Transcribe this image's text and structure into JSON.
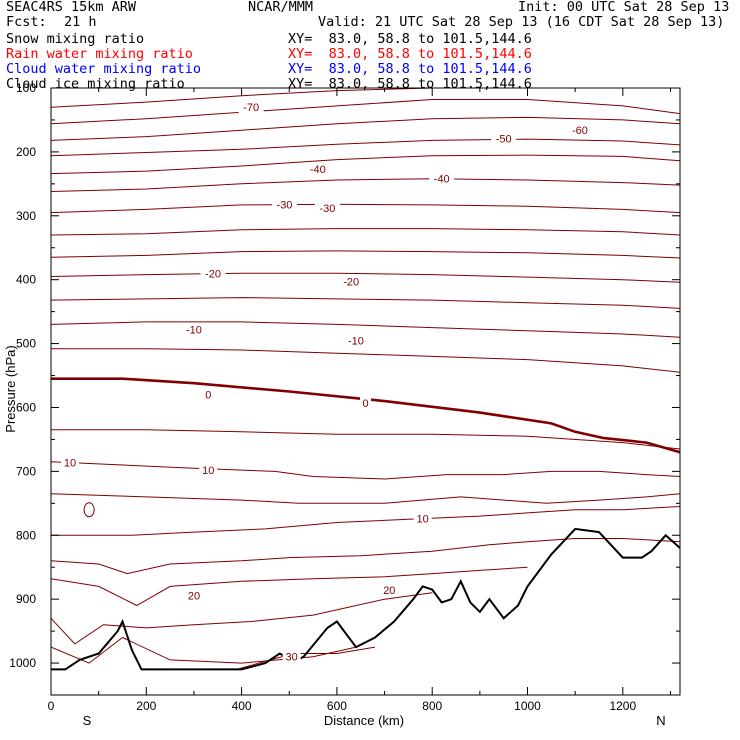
{
  "header": {
    "model": "SEAC4RS 15km ARW",
    "org": "NCAR/MMM",
    "init": "Init: 00 UTC Sat 28 Sep 13",
    "fcst_label": "Fcst:",
    "fcst_value": "21 h",
    "valid": "Valid: 21 UTC Sat 28 Sep 13 (16 CDT Sat 28 Sep 13)"
  },
  "fields": [
    {
      "name": "Snow mixing ratio",
      "xy": "XY=  83.0, 58.8 to 101.5,144.6",
      "color": "#000000"
    },
    {
      "name": "Rain water mixing ratio",
      "xy": "XY=  83.0, 58.8 to 101.5,144.6",
      "color": "#ff0000"
    },
    {
      "name": "Cloud water mixing ratio",
      "xy": "XY=  83.0, 58.8 to 101.5,144.6",
      "color": "#0000ff"
    },
    {
      "name": "Cloud ice mixing ratio",
      "xy": "XY=  83.0, 58.8 to 101.5,144.6",
      "color": "#000000"
    }
  ],
  "chart_data": {
    "type": "line",
    "xlabel": "Distance (km)",
    "ylabel": "Pressure (hPa)",
    "xlim": [
      0,
      1320
    ],
    "ylim": [
      1050,
      100
    ],
    "x_ticks": [
      0,
      200,
      400,
      600,
      800,
      1000,
      1200
    ],
    "x_tick_labels": [
      "0",
      "200",
      "400",
      "600",
      "800",
      "1000",
      "1200"
    ],
    "y_ticks": [
      100,
      200,
      300,
      400,
      500,
      600,
      700,
      800,
      900,
      1000
    ],
    "y_tick_labels": [
      "100",
      "200",
      "300",
      "400",
      "500",
      "600",
      "700",
      "800",
      "900",
      "1000"
    ],
    "endpoints": {
      "left": "S",
      "right": "N"
    },
    "contour_color": "#800000",
    "zero_color": "#800000",
    "terrain_color": "#000000",
    "temperature_contours": [
      {
        "x": [
          0,
          200,
          400,
          600,
          800,
          1000,
          1200,
          1320
        ],
        "y": [
          130,
          122,
          112,
          104,
          100,
          98,
          96,
          100
        ]
      },
      {
        "x": [
          0,
          200,
          400,
          600,
          800,
          1000,
          1200,
          1320
        ],
        "y": [
          156,
          148,
          138,
          128,
          118,
          118,
          128,
          140
        ]
      },
      {
        "x": [
          0,
          200,
          400,
          600,
          800,
          1000,
          1200,
          1320
        ],
        "y": [
          182,
          176,
          166,
          156,
          148,
          146,
          150,
          156
        ]
      },
      {
        "x": [
          0,
          200,
          400,
          600,
          800,
          1000,
          1200,
          1320
        ],
        "y": [
          206,
          201,
          196,
          188,
          182,
          180,
          183,
          189
        ]
      },
      {
        "x": [
          0,
          200,
          400,
          600,
          800,
          1000,
          1200,
          1320
        ],
        "y": [
          234,
          230,
          222,
          212,
          206,
          205,
          207,
          214
        ]
      },
      {
        "x": [
          0,
          200,
          400,
          600,
          800,
          1000,
          1200,
          1320
        ],
        "y": [
          262,
          258,
          250,
          244,
          242,
          244,
          248,
          252
        ]
      },
      {
        "x": [
          0,
          200,
          400,
          600,
          800,
          1000,
          1200,
          1320
        ],
        "y": [
          295,
          290,
          283,
          282,
          283,
          285,
          290,
          295
        ]
      },
      {
        "x": [
          0,
          200,
          400,
          600,
          800,
          1000,
          1200,
          1320
        ],
        "y": [
          330,
          328,
          322,
          320,
          320,
          322,
          325,
          330
        ]
      },
      {
        "x": [
          0,
          200,
          400,
          600,
          800,
          1000,
          1200,
          1320
        ],
        "y": [
          365,
          362,
          356,
          355,
          356,
          358,
          362,
          366
        ]
      },
      {
        "x": [
          0,
          200,
          400,
          600,
          800,
          1000,
          1200,
          1320
        ],
        "y": [
          395,
          392,
          390,
          390,
          392,
          396,
          400,
          404
        ]
      },
      {
        "x": [
          0,
          200,
          400,
          600,
          800,
          1000,
          1200,
          1320
        ],
        "y": [
          432,
          430,
          428,
          430,
          432,
          436,
          440,
          445
        ]
      },
      {
        "x": [
          0,
          200,
          400,
          600,
          800,
          1000,
          1200,
          1320
        ],
        "y": [
          470,
          466,
          466,
          470,
          475,
          480,
          485,
          490
        ]
      },
      {
        "x": [
          0,
          200,
          400,
          600,
          800,
          1000,
          1200,
          1320
        ],
        "y": [
          508,
          508,
          510,
          515,
          520,
          525,
          535,
          545
        ]
      },
      {
        "x": [
          0,
          200,
          400,
          600,
          800,
          1000,
          1200,
          1320
        ],
        "y": [
          635,
          635,
          638,
          642,
          642,
          645,
          655,
          665
        ]
      },
      {
        "x": [
          0,
          150,
          300,
          470,
          550,
          700,
          830,
          950,
          1050,
          1150,
          1250,
          1320
        ],
        "y": [
          685,
          690,
          695,
          700,
          708,
          712,
          705,
          705,
          700,
          700,
          705,
          708
        ]
      },
      {
        "x": [
          0,
          200,
          400,
          520,
          700,
          860,
          1040,
          1150,
          1250,
          1320
        ],
        "y": [
          735,
          740,
          745,
          750,
          750,
          740,
          750,
          745,
          740,
          735
        ]
      },
      {
        "x": [
          0,
          170,
          300,
          450,
          600,
          750,
          900,
          1000,
          1100,
          1200,
          1320
        ],
        "y": [
          800,
          800,
          795,
          790,
          780,
          775,
          770,
          765,
          760,
          760,
          755
        ]
      },
      {
        "x": [
          0,
          100,
          160,
          250,
          400,
          500,
          650,
          800,
          920,
          1000,
          1100,
          1200,
          1320
        ],
        "y": [
          840,
          845,
          860,
          845,
          840,
          835,
          832,
          825,
          815,
          810,
          805,
          805,
          810
        ]
      },
      {
        "x": [
          0,
          100,
          180,
          250,
          400,
          550,
          700,
          800,
          900,
          1000
        ],
        "y": [
          868,
          880,
          910,
          880,
          872,
          868,
          865,
          860,
          855,
          850
        ]
      },
      {
        "x": [
          0,
          50,
          110,
          200,
          300,
          420,
          550,
          700,
          800
        ],
        "y": [
          930,
          970,
          940,
          945,
          940,
          935,
          925,
          900,
          890
        ]
      },
      {
        "x": [
          0,
          80,
          150,
          250,
          400,
          550,
          640
        ],
        "y": [
          975,
          1000,
          960,
          995,
          1000,
          990,
          975
        ]
      },
      {
        "x": [
          390,
          460,
          510,
          600,
          680
        ],
        "y": [
          1010,
          995,
          985,
          985,
          975
        ]
      }
    ],
    "zero_isotherm": {
      "x": [
        0,
        150,
        300,
        500,
        700,
        900,
        1050,
        1100,
        1160,
        1250,
        1320
      ],
      "y": [
        555,
        555,
        562,
        575,
        590,
        608,
        625,
        638,
        648,
        655,
        670
      ]
    },
    "terrain": {
      "x": [
        0,
        30,
        60,
        100,
        140,
        150,
        170,
        190,
        300,
        400,
        450,
        480,
        510,
        530,
        580,
        600,
        640,
        680,
        720,
        760,
        780,
        800,
        820,
        840,
        860,
        880,
        900,
        920,
        950,
        980,
        1000,
        1050,
        1100,
        1150,
        1200,
        1240,
        1260,
        1290,
        1320
      ],
      "y": [
        1010,
        1010,
        995,
        985,
        950,
        935,
        980,
        1010,
        1010,
        1010,
        1000,
        985,
        998,
        990,
        945,
        935,
        975,
        960,
        935,
        900,
        880,
        885,
        905,
        900,
        872,
        905,
        920,
        900,
        930,
        910,
        880,
        830,
        790,
        795,
        835,
        835,
        825,
        800,
        820
      ]
    },
    "contour_labels": [
      {
        "text": "-70",
        "x": 420,
        "y": 130
      },
      {
        "text": "-60",
        "x": 1110,
        "y": 166
      },
      {
        "text": "-50",
        "x": 950,
        "y": 179
      },
      {
        "text": "-40",
        "x": 560,
        "y": 227
      },
      {
        "text": "-40",
        "x": 820,
        "y": 242
      },
      {
        "text": "-30",
        "x": 490,
        "y": 282
      },
      {
        "text": "-30",
        "x": 580,
        "y": 288
      },
      {
        "text": "-20",
        "x": 340,
        "y": 390
      },
      {
        "text": "-20",
        "x": 630,
        "y": 403
      },
      {
        "text": "-10",
        "x": 300,
        "y": 478
      },
      {
        "text": "-10",
        "x": 640,
        "y": 495
      },
      {
        "text": "0",
        "x": 330,
        "y": 580
      },
      {
        "text": "0",
        "x": 660,
        "y": 593
      },
      {
        "text": "10",
        "x": 40,
        "y": 686
      },
      {
        "text": "10",
        "x": 330,
        "y": 698
      },
      {
        "text": "10",
        "x": 780,
        "y": 774
      },
      {
        "text": "20",
        "x": 300,
        "y": 894
      },
      {
        "text": "20",
        "x": 710,
        "y": 886
      },
      {
        "text": "30",
        "x": 505,
        "y": 990
      }
    ]
  }
}
